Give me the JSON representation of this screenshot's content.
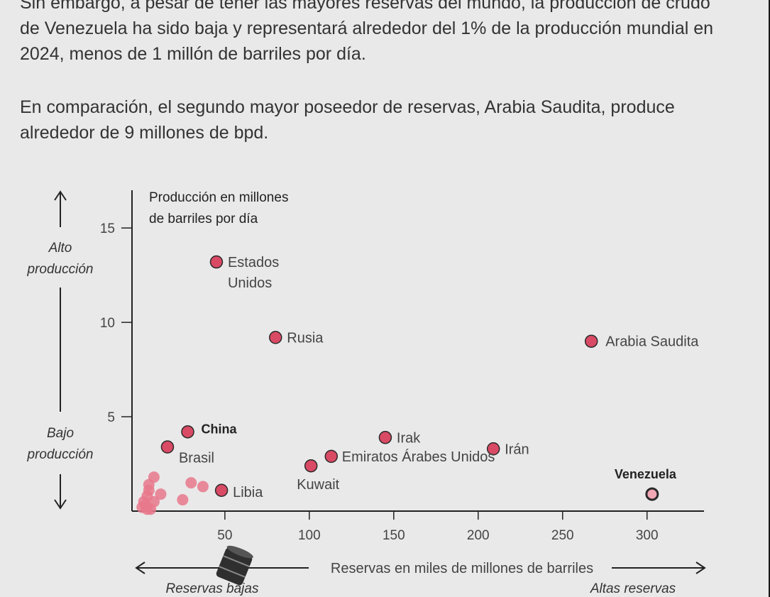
{
  "article": {
    "paragraph_1": "Sin embargo, a pesar de tener las mayores reservas del mundo, la producción de crudo de Venezuela ha sido baja y representará alrededor del 1% de la producción mundial en 2024, menos de 1 millón de barriles por día.",
    "paragraph_2": "En comparación, el segundo mayor poseedor de reservas, Arabia Saudita, produce alrededor de 9 millones de bpd."
  },
  "chart_data": {
    "type": "scatter",
    "title_line_1": "Producción en millones",
    "title_line_2": "de barriles por día",
    "xlabel": "Reservas en miles de millones de barriles",
    "x_low_label": "Reservas bajas",
    "x_high_label": "Altas reservas",
    "y_high_label_1": "Alto",
    "y_high_label_2": "producción",
    "y_low_label_1": "Bajo",
    "y_low_label_2": "producción",
    "xlim": [
      -5,
      335
    ],
    "ylim": [
      0,
      17
    ],
    "x_ticks": [
      "50",
      "100",
      "150",
      "200",
      "250",
      "300"
    ],
    "y_ticks": [
      "5",
      "10",
      "15"
    ],
    "colors": {
      "point": "#d94a64",
      "point_light": "#e8788c",
      "stroke": "#2a2a2a",
      "highlight": "#f2a7b4"
    },
    "labeled_points": [
      {
        "label_1": "Estados",
        "label_2": "Unidos",
        "x": 45,
        "y": 13.2
      },
      {
        "label_1": "Rusia",
        "label_2": "",
        "x": 80,
        "y": 9.2
      },
      {
        "label_1": "Arabia Saudita",
        "label_2": "",
        "x": 267,
        "y": 9.0
      },
      {
        "label_1": "China",
        "label_2": "",
        "x": 28,
        "y": 4.2
      },
      {
        "label_1": "Brasil",
        "label_2": "",
        "x": 16,
        "y": 3.4
      },
      {
        "label_1": "Irak",
        "label_2": "",
        "x": 145,
        "y": 3.9
      },
      {
        "label_1": "Emiratos Árabes Unidos",
        "label_2": "",
        "x": 113,
        "y": 2.9
      },
      {
        "label_1": "Irán",
        "label_2": "",
        "x": 209,
        "y": 3.3
      },
      {
        "label_1": "Kuwait",
        "label_2": "",
        "x": 101,
        "y": 2.4
      },
      {
        "label_1": "Libia",
        "label_2": "",
        "x": 48,
        "y": 1.1
      },
      {
        "label_1": "Venezuela",
        "label_2": "",
        "x": 303,
        "y": 0.9
      }
    ],
    "other_points": [
      {
        "x": 30,
        "y": 1.5
      },
      {
        "x": 37,
        "y": 1.3
      },
      {
        "x": 25,
        "y": 0.6
      },
      {
        "x": 8,
        "y": 1.8
      },
      {
        "x": 12,
        "y": 0.9
      },
      {
        "x": 5,
        "y": 1.4
      },
      {
        "x": 4,
        "y": 0.8
      },
      {
        "x": 8,
        "y": 0.5
      },
      {
        "x": 3,
        "y": 0.3
      },
      {
        "x": 6,
        "y": 0.1
      },
      {
        "x": 2,
        "y": 0.5
      },
      {
        "x": 5,
        "y": 1.1
      },
      {
        "x": 1,
        "y": 0.2
      },
      {
        "x": 4,
        "y": 0.1
      }
    ]
  }
}
